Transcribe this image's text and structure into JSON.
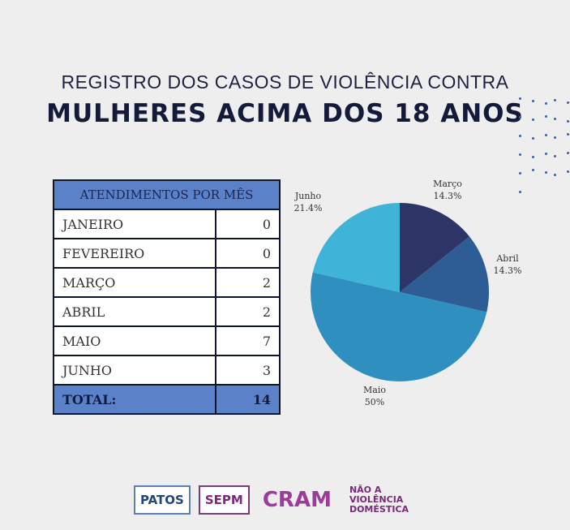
{
  "title_line1": "REGISTRO DOS CASOS DE VIOLÊNCIA CONTRA",
  "title_line2": "MULHERES ACIMA DOS 18 ANOS",
  "table": {
    "header": "ATENDIMENTOS POR MÊS",
    "rows": [
      {
        "month": "JANEIRO",
        "value": "0"
      },
      {
        "month": "FEVEREIRO",
        "value": "0"
      },
      {
        "month": "MARÇO",
        "value": "2"
      },
      {
        "month": "ABRIL",
        "value": "2"
      },
      {
        "month": "MAIO",
        "value": "7"
      },
      {
        "month": "JUNHO",
        "value": "3"
      }
    ],
    "total_label": "TOTAL:",
    "total_value": "14"
  },
  "chart_data": {
    "type": "pie",
    "categories": [
      "Março",
      "Abril",
      "Maio",
      "Junho"
    ],
    "values": [
      2,
      2,
      7,
      3
    ],
    "labels": [
      "14.3%",
      "14.3%",
      "50%",
      "21.4%"
    ],
    "colors": [
      "#2c3566",
      "#2e5c94",
      "#2f8fbf",
      "#3fb4d8"
    ]
  },
  "logos": {
    "patos": "PATOS",
    "sepm": "SEPM",
    "cram": "CRAM",
    "nao": "NÃO A VIOLÊNCIA DOMÉSTICA"
  }
}
